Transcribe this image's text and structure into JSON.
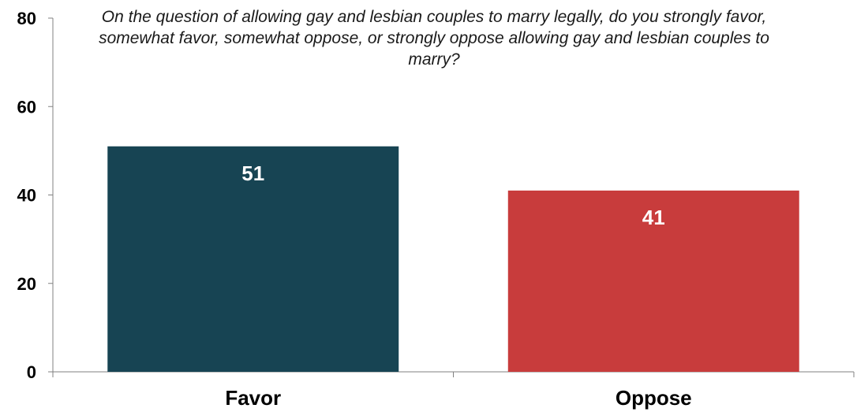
{
  "chart_data": {
    "type": "bar",
    "title": "On the question of allowing gay and lesbian couples to marry legally, do you strongly favor, somewhat favor, somewhat oppose, or strongly oppose allowing gay and lesbian couples to marry?",
    "categories": [
      "Favor",
      "Oppose"
    ],
    "values": [
      51,
      41
    ],
    "data_labels": [
      "51",
      "41"
    ],
    "colors": [
      "#174453",
      "#c83c3c"
    ],
    "ylim": [
      0,
      80
    ],
    "yticks": [
      0,
      20,
      40,
      60,
      80
    ],
    "ytick_labels": [
      "0",
      "20",
      "40",
      "60",
      "80"
    ],
    "grid": false,
    "xlabel": "",
    "ylabel": ""
  }
}
